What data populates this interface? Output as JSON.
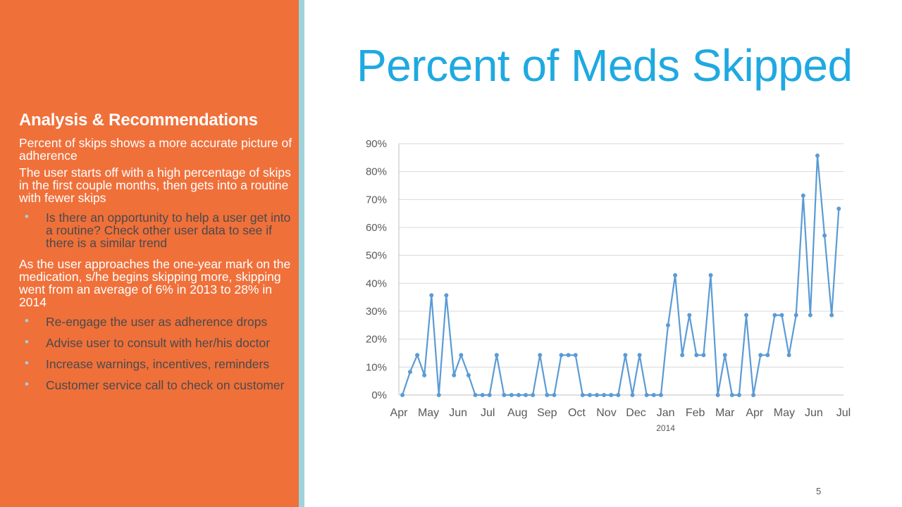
{
  "slide": {
    "title": "Percent of Meds Skipped",
    "page_number": "5",
    "colors": {
      "sidebar": "#F0703A",
      "stripe": "#9ED3DB",
      "title": "#1FA9E1",
      "line": "#5B9BD5",
      "text_dark": "#4a4a4a"
    }
  },
  "sidebar": {
    "heading": "Analysis & Recommendations",
    "para1": "Percent of skips shows a more accurate picture of adherence",
    "para2": "The user starts off with a high percentage of skips in the first couple months, then gets into a routine with fewer skips",
    "bullets1": [
      "Is there an opportunity to help a user get into a routine? Check other user data to see if there is a similar trend"
    ],
    "para3": "As the user approaches the one-year mark on the medication, s/he begins skipping more, skipping went from an average of 6% in 2013 to 28% in 2014",
    "bullets2": [
      "Re-engage the user as adherence drops",
      "Advise user to consult with her/his doctor",
      "Increase warnings, incentives, reminders",
      "Customer service call to check on customer"
    ]
  },
  "chart_data": {
    "type": "line",
    "title": "",
    "xlabel": "",
    "ylabel": "",
    "ylim": [
      0,
      90
    ],
    "ytick_step": 10,
    "ytick_labels": [
      "0%",
      "10%",
      "20%",
      "30%",
      "40%",
      "50%",
      "60%",
      "70%",
      "80%",
      "90%"
    ],
    "month_labels": [
      "Apr",
      "May",
      "Jun",
      "Jul",
      "Aug",
      "Sep",
      "Oct",
      "Nov",
      "Dec",
      "Jan",
      "Feb",
      "Mar",
      "Apr",
      "May",
      "Jun",
      "Jul"
    ],
    "year_label": "2014",
    "year_label_month_index": 9,
    "grid": true,
    "series": [
      {
        "name": "Percent skipped",
        "x": [
          0.12,
          0.38,
          0.62,
          0.86,
          1.1,
          1.35,
          1.6,
          1.86,
          2.1,
          2.35,
          2.58,
          2.82,
          3.06,
          3.3,
          3.55,
          3.8,
          4.04,
          4.28,
          4.52,
          4.76,
          5.0,
          5.24,
          5.48,
          5.72,
          5.96,
          6.2,
          6.44,
          6.68,
          6.92,
          7.16,
          7.4,
          7.64,
          7.88,
          8.12,
          8.36,
          8.6,
          8.84,
          9.08,
          9.32,
          9.56,
          9.8,
          10.04,
          10.28,
          10.52,
          10.76,
          11.0,
          11.24,
          11.48,
          11.72,
          11.96,
          12.2,
          12.44,
          12.68,
          12.92,
          13.16,
          13.4,
          13.64,
          13.88,
          14.12,
          14.36,
          14.6,
          14.84
        ],
        "values": [
          0,
          8.3,
          14.3,
          7.1,
          35.7,
          0,
          35.7,
          7.1,
          14.3,
          7.1,
          0,
          0,
          0,
          14.3,
          0,
          0,
          0,
          0,
          0,
          14.3,
          0,
          0,
          14.3,
          14.3,
          14.3,
          0,
          0,
          0,
          0,
          0,
          0,
          14.3,
          0,
          14.3,
          0,
          0,
          0,
          25,
          42.9,
          14.3,
          28.6,
          14.3,
          14.3,
          42.9,
          0,
          14.3,
          0,
          0,
          28.6,
          0,
          14.3,
          14.3,
          28.6,
          28.6,
          14.3,
          28.6,
          71.4,
          28.6,
          85.7,
          57.1,
          28.6,
          66.7
        ]
      }
    ]
  }
}
